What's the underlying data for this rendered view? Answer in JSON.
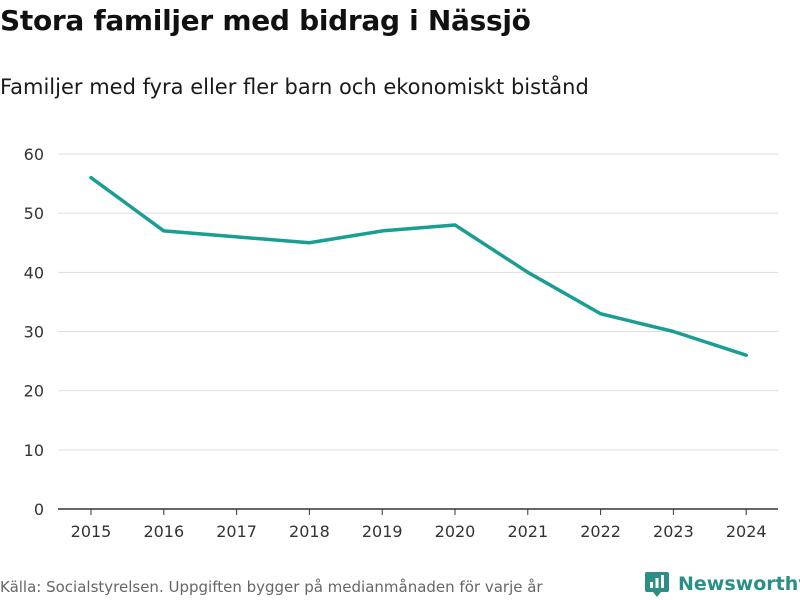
{
  "title": "Stora familjer med bidrag i Nässjö",
  "subtitle": "Familjer med fyra eller fler barn och ekonomiskt bistånd",
  "source": "Källa: Socialstyrelsen. Uppgiften bygger på medianmånaden för varje år",
  "brand": {
    "name": "Newsworthy",
    "icon": "newsworthy-logo-icon",
    "color": "#2b8f86"
  },
  "colors": {
    "line": "#1a9e93",
    "grid": "#dddddd",
    "axis": "#333333"
  },
  "chart_data": {
    "type": "line",
    "title": "Stora familjer med bidrag i Nässjö",
    "subtitle": "Familjer med fyra eller fler barn och ekonomiskt bistånd",
    "xlabel": "",
    "ylabel": "",
    "x": [
      "2015",
      "2016",
      "2017",
      "2018",
      "2019",
      "2020",
      "2021",
      "2022",
      "2023",
      "2024"
    ],
    "series": [
      {
        "name": "Familjer med fyra eller fler barn och ekonomiskt bistånd",
        "values": [
          56,
          47,
          46,
          45,
          47,
          48,
          40,
          33,
          30,
          26
        ]
      }
    ],
    "ylim": [
      0,
      60
    ],
    "yticks": [
      0,
      10,
      20,
      30,
      40,
      50,
      60
    ],
    "grid": true,
    "legend": "none"
  }
}
